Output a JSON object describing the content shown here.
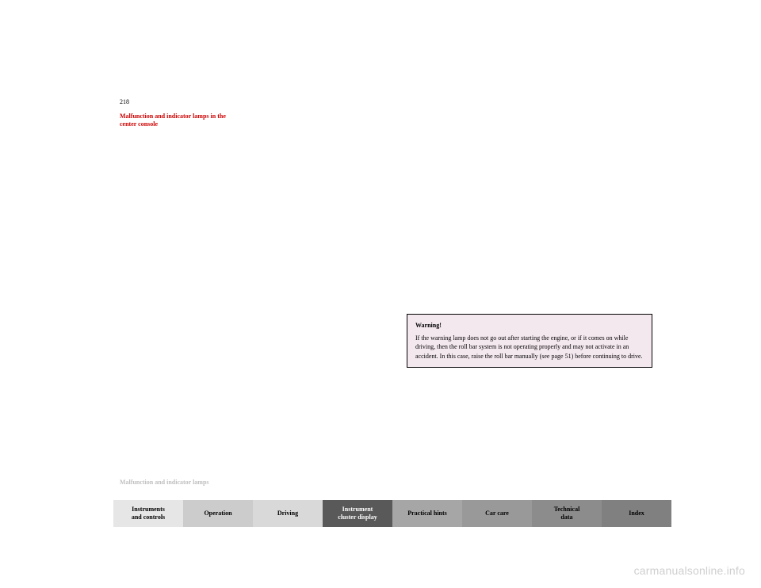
{
  "page_number": "218",
  "section_title_line1": "Malfunction and indicator lamps in the",
  "section_title_line2": "center console",
  "left_column": {
    "p1": "",
    "p2": "",
    "p3": ""
  },
  "right_column": {
    "p1": ""
  },
  "warning": {
    "title": "Warning!",
    "body": "If the warning lamp does not go out after starting the engine, or if it comes on while driving, then the roll bar system is not operating properly and may not activate in an accident. In this case, raise the roll bar manually (see page 51) before continuing to drive."
  },
  "breadcrumb": "Malfunction and indicator lamps",
  "tabs": [
    {
      "label": "Instruments and controls",
      "bg": "#e6e6e6"
    },
    {
      "label": "Operation",
      "bg": "#cccccc"
    },
    {
      "label": "Driving",
      "bg": "#d9d9d9"
    },
    {
      "label": "Instrument cluster display",
      "bg": "#595959"
    },
    {
      "label": "Practical hints",
      "bg": "#a6a6a6"
    },
    {
      "label": "Car care",
      "bg": "#999999"
    },
    {
      "label": "Technical data",
      "bg": "#8c8c8c"
    },
    {
      "label": "Index",
      "bg": "#808080"
    }
  ],
  "tab_active_index": 3,
  "tab_active_text_color": "#ffffff",
  "watermark": "carmanualsonline.info"
}
